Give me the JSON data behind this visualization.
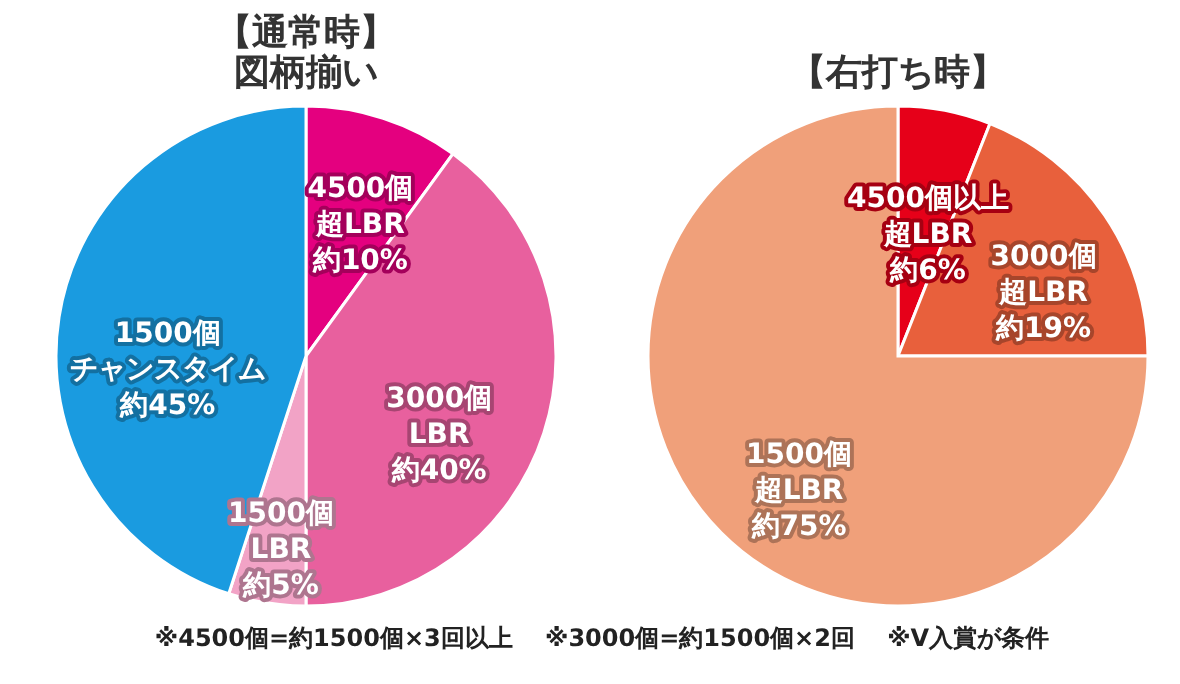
{
  "chart_data": [
    {
      "type": "pie",
      "title": "【通常時】",
      "subtitle": "図柄揃い",
      "categories": [
        "4500個超LBR",
        "3000個LBR",
        "1500個LBR",
        "1500個チャンスタイム"
      ],
      "values": [
        10,
        40,
        5,
        45
      ],
      "value_labels": [
        "約10%",
        "約40%",
        "約5%",
        "約45%"
      ],
      "colors": [
        "#e4007f",
        "#e8609e",
        "#f2a3c6",
        "#1a9be0"
      ],
      "annotations": [
        "※4500個=約1500個×3回以上"
      ]
    },
    {
      "type": "pie",
      "title": "【右打ち時】",
      "categories": [
        "4500個以上超LBR",
        "3000個超LBR",
        "1500個超LBR"
      ],
      "values": [
        6,
        19,
        75
      ],
      "value_labels": [
        "約6%",
        "約19%",
        "約75%"
      ],
      "colors": [
        "#e60019",
        "#e8603c",
        "#f0a07a"
      ],
      "annotations": [
        "※3000個=約1500個×2回",
        "※V入賞が条件"
      ]
    }
  ]
}
